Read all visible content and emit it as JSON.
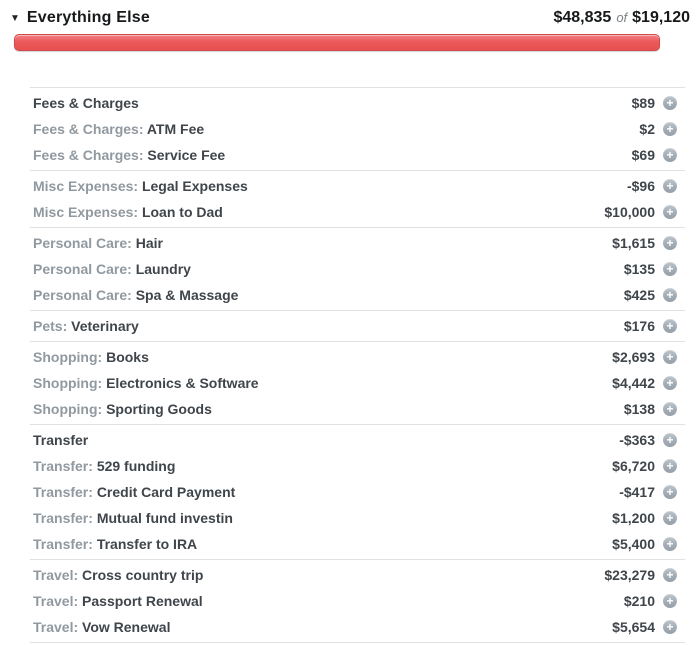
{
  "header": {
    "collapse_icon": "▼",
    "title": "Everything Else",
    "spent": "$48,835",
    "of_label": "of",
    "budget": "$19,120"
  },
  "progress": {
    "percent_filled": 100,
    "bar_color": "#ec5a5b",
    "over_budget": true
  },
  "icons": {
    "add_glyph": "+"
  },
  "colors": {
    "accent_red": "#ec5a5b",
    "text_dark": "#3f454a",
    "text_gray": "#9199a0",
    "divider": "#dfe2e5",
    "plus_icon_gray": "#a4adb5"
  },
  "groups": [
    {
      "rows": [
        {
          "prefix": "",
          "name": "Fees & Charges",
          "amount": "$89"
        },
        {
          "prefix": "Fees & Charges:",
          "name": "ATM Fee",
          "amount": "$2"
        },
        {
          "prefix": "Fees & Charges:",
          "name": "Service Fee",
          "amount": "$69"
        }
      ]
    },
    {
      "rows": [
        {
          "prefix": "Misc Expenses:",
          "name": "Legal Expenses",
          "amount": "-$96"
        },
        {
          "prefix": "Misc Expenses:",
          "name": "Loan to Dad",
          "amount": "$10,000"
        }
      ]
    },
    {
      "rows": [
        {
          "prefix": "Personal Care:",
          "name": "Hair",
          "amount": "$1,615"
        },
        {
          "prefix": "Personal Care:",
          "name": "Laundry",
          "amount": "$135"
        },
        {
          "prefix": "Personal Care:",
          "name": "Spa & Massage",
          "amount": "$425"
        }
      ]
    },
    {
      "rows": [
        {
          "prefix": "Pets:",
          "name": "Veterinary",
          "amount": "$176"
        }
      ]
    },
    {
      "rows": [
        {
          "prefix": "Shopping:",
          "name": "Books",
          "amount": "$2,693"
        },
        {
          "prefix": "Shopping:",
          "name": "Electronics & Software",
          "amount": "$4,442"
        },
        {
          "prefix": "Shopping:",
          "name": "Sporting Goods",
          "amount": "$138"
        }
      ]
    },
    {
      "rows": [
        {
          "prefix": "",
          "name": "Transfer",
          "amount": "-$363"
        },
        {
          "prefix": "Transfer:",
          "name": "529 funding",
          "amount": "$6,720"
        },
        {
          "prefix": "Transfer:",
          "name": "Credit Card Payment",
          "amount": "-$417"
        },
        {
          "prefix": "Transfer:",
          "name": "Mutual fund investin",
          "amount": "$1,200"
        },
        {
          "prefix": "Transfer:",
          "name": "Transfer to IRA",
          "amount": "$5,400"
        }
      ]
    },
    {
      "rows": [
        {
          "prefix": "Travel:",
          "name": "Cross country trip",
          "amount": "$23,279"
        },
        {
          "prefix": "Travel:",
          "name": "Passport Renewal",
          "amount": "$210"
        },
        {
          "prefix": "Travel:",
          "name": "Vow Renewal",
          "amount": "$5,654"
        }
      ]
    }
  ]
}
